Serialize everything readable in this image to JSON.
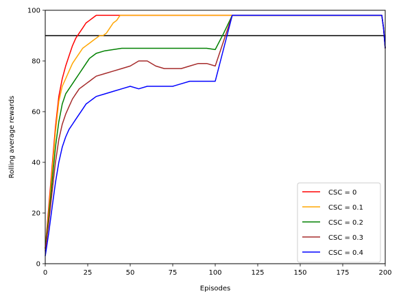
{
  "chart_data": {
    "type": "line",
    "xlabel": "Episodes",
    "ylabel": "Rolling average rewards",
    "xlim": [
      0,
      200
    ],
    "ylim": [
      0,
      100
    ],
    "xticks": [
      0,
      25,
      50,
      75,
      100,
      125,
      150,
      175,
      200
    ],
    "yticks": [
      0,
      20,
      40,
      60,
      80,
      100
    ],
    "legend_position": "bottom-right",
    "hline": {
      "y": 90,
      "color": "#000000"
    },
    "series": [
      {
        "name": "CSC = 0",
        "color": "#ff0000",
        "x": [
          0,
          2,
          4,
          6,
          8,
          10,
          12,
          14,
          16,
          18,
          20,
          22,
          24,
          26,
          28,
          30,
          35,
          40,
          45,
          50,
          60,
          70,
          80,
          90,
          100,
          105,
          108,
          110,
          120,
          140,
          160,
          180,
          198,
          199,
          200
        ],
        "y": [
          6,
          22,
          38,
          54,
          66,
          73,
          78,
          82,
          86,
          89,
          91,
          93,
          95,
          96,
          97,
          98,
          98,
          98,
          98,
          98,
          98,
          98,
          98,
          98,
          98,
          98,
          98,
          98,
          98,
          98,
          98,
          98,
          98,
          93,
          85
        ]
      },
      {
        "name": "CSC = 0.1",
        "color": "#ffa500",
        "x": [
          0,
          2,
          4,
          6,
          8,
          10,
          12,
          14,
          16,
          18,
          20,
          22,
          24,
          26,
          28,
          30,
          32,
          34,
          36,
          38,
          40,
          42,
          44,
          50,
          60,
          70,
          80,
          90,
          100,
          105,
          108,
          110,
          120,
          140,
          160,
          180,
          198,
          199,
          200
        ],
        "y": [
          6,
          20,
          36,
          52,
          64,
          70,
          73,
          76,
          79,
          81,
          83,
          85,
          86,
          87,
          88,
          89,
          90,
          90,
          91,
          93,
          95,
          96,
          98,
          98,
          98,
          98,
          98,
          98,
          98,
          98,
          98,
          98,
          98,
          98,
          98,
          98,
          98,
          93,
          85
        ]
      },
      {
        "name": "CSC = 0.2",
        "color": "#008000",
        "x": [
          0,
          2,
          4,
          6,
          8,
          10,
          12,
          14,
          16,
          18,
          20,
          22,
          24,
          26,
          28,
          30,
          35,
          40,
          45,
          50,
          55,
          60,
          65,
          70,
          75,
          80,
          85,
          90,
          95,
          100,
          105,
          110,
          120,
          140,
          160,
          180,
          198,
          199,
          200
        ],
        "y": [
          6,
          18,
          32,
          46,
          56,
          63,
          67,
          69,
          71,
          73,
          75,
          77,
          79,
          81,
          82,
          83,
          84,
          84.5,
          85,
          85,
          85,
          85,
          85,
          85,
          85,
          85,
          85,
          85,
          85,
          84.5,
          91,
          98,
          98,
          98,
          98,
          98,
          98,
          93,
          85
        ]
      },
      {
        "name": "CSC = 0.3",
        "color": "#a52a2a",
        "x": [
          0,
          2,
          4,
          6,
          8,
          10,
          12,
          14,
          16,
          18,
          20,
          22,
          24,
          26,
          28,
          30,
          35,
          40,
          45,
          50,
          55,
          60,
          65,
          70,
          75,
          80,
          85,
          90,
          95,
          100,
          105,
          110,
          120,
          140,
          160,
          180,
          198,
          199,
          200
        ],
        "y": [
          5,
          16,
          28,
          40,
          49,
          55,
          59,
          62,
          65,
          67,
          69,
          70,
          71,
          72,
          73,
          74,
          75,
          76,
          77,
          78,
          80,
          80,
          78,
          77,
          77,
          77,
          78,
          79,
          79,
          78,
          88,
          98,
          98,
          98,
          98,
          98,
          98,
          93,
          85
        ]
      },
      {
        "name": "CSC = 0.4",
        "color": "#0000ff",
        "x": [
          0,
          2,
          4,
          6,
          8,
          10,
          12,
          14,
          16,
          18,
          20,
          22,
          24,
          26,
          28,
          30,
          35,
          40,
          45,
          50,
          55,
          60,
          65,
          70,
          75,
          80,
          85,
          90,
          95,
          100,
          105,
          110,
          120,
          140,
          160,
          180,
          198,
          199,
          200
        ],
        "y": [
          3,
          12,
          22,
          32,
          40,
          46,
          50,
          53,
          55,
          57,
          59,
          61,
          63,
          64,
          65,
          66,
          67,
          68,
          69,
          70,
          69,
          70,
          70,
          70,
          70,
          71,
          72,
          72,
          72,
          72,
          85,
          98,
          98,
          98,
          98,
          98,
          98,
          93,
          85
        ]
      }
    ]
  }
}
